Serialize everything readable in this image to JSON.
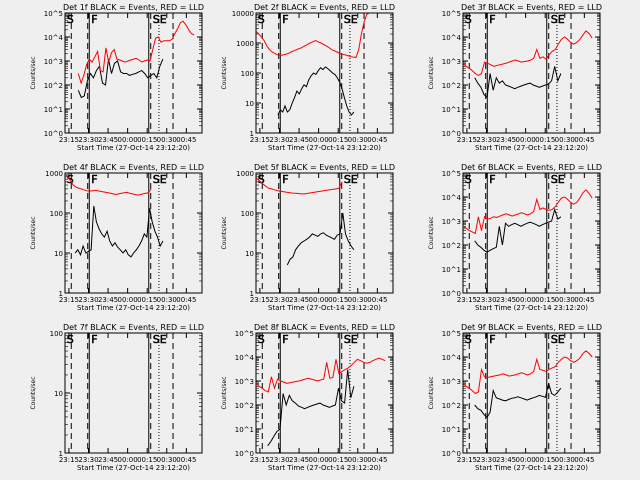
{
  "x_tick_labels": [
    "23:15",
    "23:30",
    "23:45",
    "00:00",
    "00:15",
    "00:30",
    "00:45"
  ],
  "xlabel": "Start Time (27-Oct-14 23:12:20)",
  "ylabel": "Counts/sec",
  "colors": {
    "events": "#000000",
    "lld": "#ff0000",
    "background": "#efefef"
  },
  "chart_data": [
    {
      "type": "line",
      "title": "Det 1f BLACK = Events, RED = LLD",
      "yscale": "log",
      "ylim": [
        1,
        100000
      ],
      "y_tick_labels": [
        "10^0",
        "10^1",
        "10^2",
        "10^3",
        "10^4",
        "10^5"
      ],
      "phase_labels": [
        "S",
        "F",
        "SE"
      ],
      "series": [
        {
          "name": "Events",
          "x_range": [
            23.37,
            24.45
          ],
          "y": [
            60,
            30,
            35,
            150,
            300,
            200,
            400,
            600,
            120,
            100,
            1200,
            300,
            800,
            1000,
            350,
            300,
            300,
            250,
            280,
            300,
            350,
            400,
            300,
            200,
            250,
            300,
            200,
            600,
            1200
          ]
        },
        {
          "name": "LLD",
          "x_range": [
            23.37,
            24.85
          ],
          "y": [
            300,
            120,
            250,
            700,
            1200,
            900,
            1500,
            2500,
            400,
            350,
            3500,
            900,
            2200,
            3000,
            1200,
            1100,
            1000,
            900,
            1000,
            1100,
            1200,
            1300,
            1100,
            900,
            1000,
            1100,
            1000,
            3000,
            9000,
            10000,
            6000,
            7000,
            7000,
            7000,
            8000,
            14000,
            22000,
            40000,
            45000,
            32000,
            20000,
            14000,
            12000
          ]
        }
      ]
    },
    {
      "type": "line",
      "title": "Det 2f BLACK = Events, RED = LLD",
      "yscale": "log",
      "ylim": [
        1,
        10000
      ],
      "y_tick_labels": [
        "1",
        "10",
        "100",
        "1000",
        "10000"
      ],
      "phase_labels": [
        "S",
        "F",
        "SE"
      ],
      "series": [
        {
          "name": "Events",
          "x_range": [
            23.48,
            24.45
          ],
          "y": [
            4,
            6,
            5,
            8,
            5,
            6,
            10,
            15,
            25,
            20,
            30,
            40,
            35,
            60,
            80,
            100,
            90,
            120,
            150,
            130,
            160,
            140,
            120,
            100,
            90,
            70,
            50,
            30,
            15,
            8,
            5,
            4,
            5
          ]
        },
        {
          "name": "LLD",
          "x_range": [
            23.2,
            24.65
          ],
          "y": [
            2500,
            2000,
            1600,
            1200,
            800,
            600,
            500,
            450,
            400,
            380,
            400,
            420,
            450,
            500,
            550,
            600,
            650,
            700,
            800,
            900,
            1000,
            1100,
            1200,
            1100,
            1000,
            900,
            800,
            700,
            600,
            550,
            500,
            450,
            420,
            400,
            380,
            350,
            340,
            330,
            600,
            2000,
            5000,
            9000,
            10000
          ]
        }
      ]
    },
    {
      "type": "line",
      "title": "Det 3f BLACK = Events, RED = LLD",
      "yscale": "log",
      "ylim": [
        1,
        100000
      ],
      "y_tick_labels": [
        "10^0",
        "10^1",
        "10^2",
        "10^3",
        "10^4",
        "10^5"
      ],
      "phase_labels": [
        "S",
        "F",
        "SE"
      ],
      "series": [
        {
          "name": "Events",
          "x_range": [
            23.35,
            24.45
          ],
          "y": [
            200,
            120,
            80,
            40,
            30,
            300,
            60,
            200,
            120,
            150,
            100,
            90,
            80,
            70,
            80,
            90,
            100,
            110,
            120,
            100,
            90,
            80,
            90,
            100,
            110,
            150,
            600,
            150,
            300
          ]
        },
        {
          "name": "LLD",
          "x_range": [
            23.2,
            24.85
          ],
          "y": [
            800,
            600,
            500,
            400,
            300,
            250,
            300,
            900,
            800,
            700,
            600,
            650,
            700,
            750,
            800,
            900,
            1000,
            1100,
            1000,
            900,
            950,
            1000,
            1100,
            1300,
            3000,
            1300,
            1500,
            1200,
            1800,
            2500,
            3000,
            5000,
            8000,
            10000,
            8000,
            6000,
            5000,
            6000,
            8000,
            12000,
            18000,
            14000,
            9000
          ]
        }
      ]
    },
    {
      "type": "line",
      "title": "Det 4f BLACK = Events, RED = LLD",
      "yscale": "log",
      "ylim": [
        1,
        1000
      ],
      "y_tick_labels": [
        "1",
        "10",
        "100",
        "1000"
      ],
      "phase_labels": [
        "S",
        "F",
        "SE"
      ],
      "series": [
        {
          "name": "Events",
          "x_range": [
            23.33,
            24.45
          ],
          "y": [
            10,
            12,
            9,
            15,
            10,
            11,
            12,
            150,
            60,
            40,
            30,
            25,
            35,
            20,
            15,
            18,
            14,
            12,
            10,
            12,
            9,
            8,
            10,
            12,
            15,
            20,
            30,
            25,
            130,
            60,
            35,
            25,
            15,
            20
          ]
        },
        {
          "name": "LLD",
          "x_range": [
            23.2,
            24.3
          ],
          "y": [
            950,
            800,
            650,
            500,
            450,
            420,
            400,
            380,
            360,
            350,
            360,
            370,
            360,
            350,
            340,
            330,
            320,
            310,
            300,
            290,
            300,
            310,
            320,
            330,
            310,
            300,
            290,
            280,
            290,
            300,
            310,
            320,
            400
          ]
        }
      ]
    },
    {
      "type": "line",
      "title": "Det 5f BLACK = Events, RED = LLD",
      "yscale": "log",
      "ylim": [
        1,
        1000
      ],
      "y_tick_labels": [
        "1",
        "10",
        "100",
        "1000"
      ],
      "phase_labels": [
        "S",
        "F",
        "SE"
      ],
      "series": [
        {
          "name": "Events",
          "x_range": [
            23.6,
            24.45
          ],
          "y": [
            5,
            7,
            8,
            12,
            15,
            18,
            20,
            22,
            25,
            30,
            28,
            26,
            30,
            32,
            28,
            26,
            24,
            22,
            28,
            30,
            100,
            30,
            20,
            15,
            12
          ]
        },
        {
          "name": "LLD",
          "x_range": [
            23.2,
            24.3
          ],
          "y": [
            750,
            650,
            550,
            480,
            420,
            400,
            380,
            360,
            350,
            340,
            330,
            320,
            315,
            310,
            305,
            300,
            300,
            310,
            320,
            330,
            340,
            350,
            360,
            370,
            380,
            390,
            400,
            420,
            600
          ]
        }
      ]
    },
    {
      "type": "line",
      "title": "Det 6f BLACK = Events, RED = LLD",
      "yscale": "log",
      "ylim": [
        1,
        100000
      ],
      "y_tick_labels": [
        "10^0",
        "10^1",
        "10^2",
        "10^3",
        "10^4",
        "10^5"
      ],
      "phase_labels": [
        "S",
        "F",
        "SE"
      ],
      "series": [
        {
          "name": "Events",
          "x_range": [
            23.35,
            24.45
          ],
          "y": [
            150,
            100,
            80,
            60,
            50,
            60,
            70,
            80,
            600,
            100,
            800,
            600,
            700,
            800,
            700,
            600,
            700,
            800,
            900,
            800,
            700,
            600,
            700,
            800,
            900,
            1000,
            3000,
            1200,
            1500
          ]
        },
        {
          "name": "LLD",
          "x_range": [
            23.2,
            24.85
          ],
          "y": [
            600,
            500,
            400,
            350,
            300,
            1500,
            400,
            1500,
            1200,
            1300,
            1500,
            1400,
            1600,
            1800,
            2000,
            1800,
            1600,
            1800,
            2000,
            2200,
            2000,
            1800,
            2000,
            2500,
            8000,
            3000,
            3500,
            3000,
            2800,
            3000,
            4000,
            6000,
            9000,
            10000,
            8000,
            6000,
            5000,
            6000,
            9000,
            15000,
            20000,
            14000,
            9000
          ]
        }
      ]
    },
    {
      "type": "line",
      "title": "Det 7f BLACK = Events, RED = LLD",
      "yscale": "log",
      "ylim": [
        1,
        100
      ],
      "y_tick_labels": [
        "1",
        "10",
        "100"
      ],
      "phase_labels": [
        "S",
        "F",
        "SE"
      ],
      "series": []
    },
    {
      "type": "line",
      "title": "Det 8f BLACK = Events, RED = LLD",
      "yscale": "log",
      "ylim": [
        1,
        100000
      ],
      "y_tick_labels": [
        "10^0",
        "10^1",
        "10^2",
        "10^3",
        "10^4",
        "10^5"
      ],
      "phase_labels": [
        "S",
        "F",
        "SE"
      ],
      "series": [
        {
          "name": "Events",
          "x_range": [
            23.35,
            24.45
          ],
          "y": [
            2,
            3,
            5,
            8,
            10,
            300,
            100,
            250,
            150,
            120,
            90,
            80,
            70,
            80,
            90,
            100,
            110,
            120,
            100,
            90,
            80,
            90,
            100,
            500,
            150,
            120,
            3000,
            200,
            600
          ]
        },
        {
          "name": "LLD",
          "x_range": [
            23.2,
            24.85
          ],
          "y": [
            800,
            600,
            500,
            400,
            350,
            1500,
            500,
            1200,
            1000,
            900,
            800,
            850,
            900,
            950,
            1000,
            1100,
            1200,
            1300,
            1200,
            1100,
            1000,
            1100,
            1200,
            6000,
            1300,
            1400,
            8000,
            2000,
            2500,
            3000,
            3500,
            4500,
            6000,
            8000,
            7000,
            6000,
            5500,
            6000,
            7000,
            8000,
            9000,
            8000,
            7000
          ]
        }
      ]
    },
    {
      "type": "line",
      "title": "Det 9f BLACK = Events, RED = LLD",
      "yscale": "log",
      "ylim": [
        1,
        100000
      ],
      "y_tick_labels": [
        "10^0",
        "10^1",
        "10^2",
        "10^3",
        "10^4",
        "10^5"
      ],
      "phase_labels": [
        "S",
        "F",
        "SE"
      ],
      "series": [
        {
          "name": "Events",
          "x_range": [
            23.35,
            24.45
          ],
          "y": [
            100,
            70,
            60,
            40,
            30,
            50,
            400,
            200,
            180,
            160,
            150,
            170,
            190,
            200,
            220,
            200,
            180,
            160,
            180,
            200,
            220,
            250,
            230,
            210,
            800,
            300,
            250,
            350,
            500
          ]
        },
        {
          "name": "LLD",
          "x_range": [
            23.2,
            24.85
          ],
          "y": [
            800,
            600,
            500,
            400,
            300,
            350,
            3000,
            1500,
            1400,
            1500,
            1600,
            1700,
            1800,
            2000,
            1800,
            1600,
            1700,
            1800,
            2000,
            2200,
            2000,
            1800,
            2000,
            2500,
            8000,
            3000,
            2800,
            2500,
            3000,
            3500,
            4000,
            6000,
            8000,
            10000,
            9000,
            7000,
            6000,
            7000,
            9000,
            14000,
            18000,
            14000,
            10000
          ]
        }
      ]
    }
  ]
}
